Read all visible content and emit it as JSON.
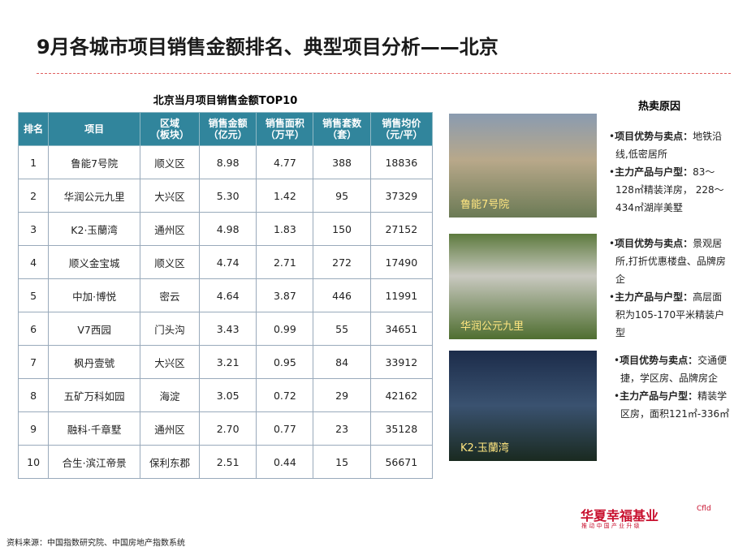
{
  "header": {
    "title": "9月各城市项目销售金额排名、典型项目分析——北京"
  },
  "table": {
    "title": "北京当月项目销售金额TOP10",
    "columns": [
      "排名",
      "项目",
      "区域\n（板块）",
      "销售金额\n（亿元）",
      "销售面积\n（万平）",
      "销售套数\n（套）",
      "销售均价\n（元/平）"
    ],
    "rows": [
      [
        "1",
        "鲁能7号院",
        "顺义区",
        "8.98",
        "4.77",
        "388",
        "18836"
      ],
      [
        "2",
        "华润公元九里",
        "大兴区",
        "5.30",
        "1.42",
        "95",
        "37329"
      ],
      [
        "3",
        "K2·玉蘭湾",
        "通州区",
        "4.98",
        "1.83",
        "150",
        "27152"
      ],
      [
        "4",
        "顺义金宝城",
        "顺义区",
        "4.74",
        "2.71",
        "272",
        "17490"
      ],
      [
        "5",
        "中加·博悦",
        "密云",
        "4.64",
        "3.87",
        "446",
        "11991"
      ],
      [
        "6",
        "V7西园",
        "门头沟",
        "3.43",
        "0.99",
        "55",
        "34651"
      ],
      [
        "7",
        "枫丹壹號",
        "大兴区",
        "3.21",
        "0.95",
        "84",
        "33912"
      ],
      [
        "8",
        "五矿万科如园",
        "海淀",
        "3.05",
        "0.72",
        "29",
        "42162"
      ],
      [
        "9",
        "融科·千章墅",
        "通州区",
        "2.70",
        "0.77",
        "23",
        "35128"
      ],
      [
        "10",
        "合生·滨江帝景",
        "保利东郡",
        "2.51",
        "0.44",
        "15",
        "56671"
      ]
    ]
  },
  "reasons": {
    "title": "热卖原因",
    "projects": [
      {
        "image_label": "鲁能7号院",
        "points": [
          {
            "label": "项目优势与卖点：",
            "text": "地铁沿线,低密居所"
          },
          {
            "label": "主力产品与户型：",
            "text": "83～128㎡精装洋房， 228～434㎡湖岸美墅"
          }
        ]
      },
      {
        "image_label": "华润公元九里",
        "points": [
          {
            "label": "项目优势与卖点：",
            "text": "景观居所,打折优惠楼盘、品牌房企"
          },
          {
            "label": "主力产品与户型：",
            "text": "高层面积为105-170平米精装户型"
          }
        ]
      },
      {
        "image_label": "K2·玉蘭湾",
        "points": [
          {
            "label": "项目优势与卖点：",
            "text": "交通便捷，学区房、品牌房企"
          },
          {
            "label": "主力产品与户型：",
            "text": "精装学区房，面积121㎡-336㎡"
          }
        ]
      }
    ]
  },
  "logo": {
    "name": "华夏幸福基业",
    "slogan": "推 动 中 国 产 业 升 级",
    "mark": "Cfld"
  },
  "footer": {
    "source": "资料来源：中国指数研究院、中国房地产指数系统"
  }
}
